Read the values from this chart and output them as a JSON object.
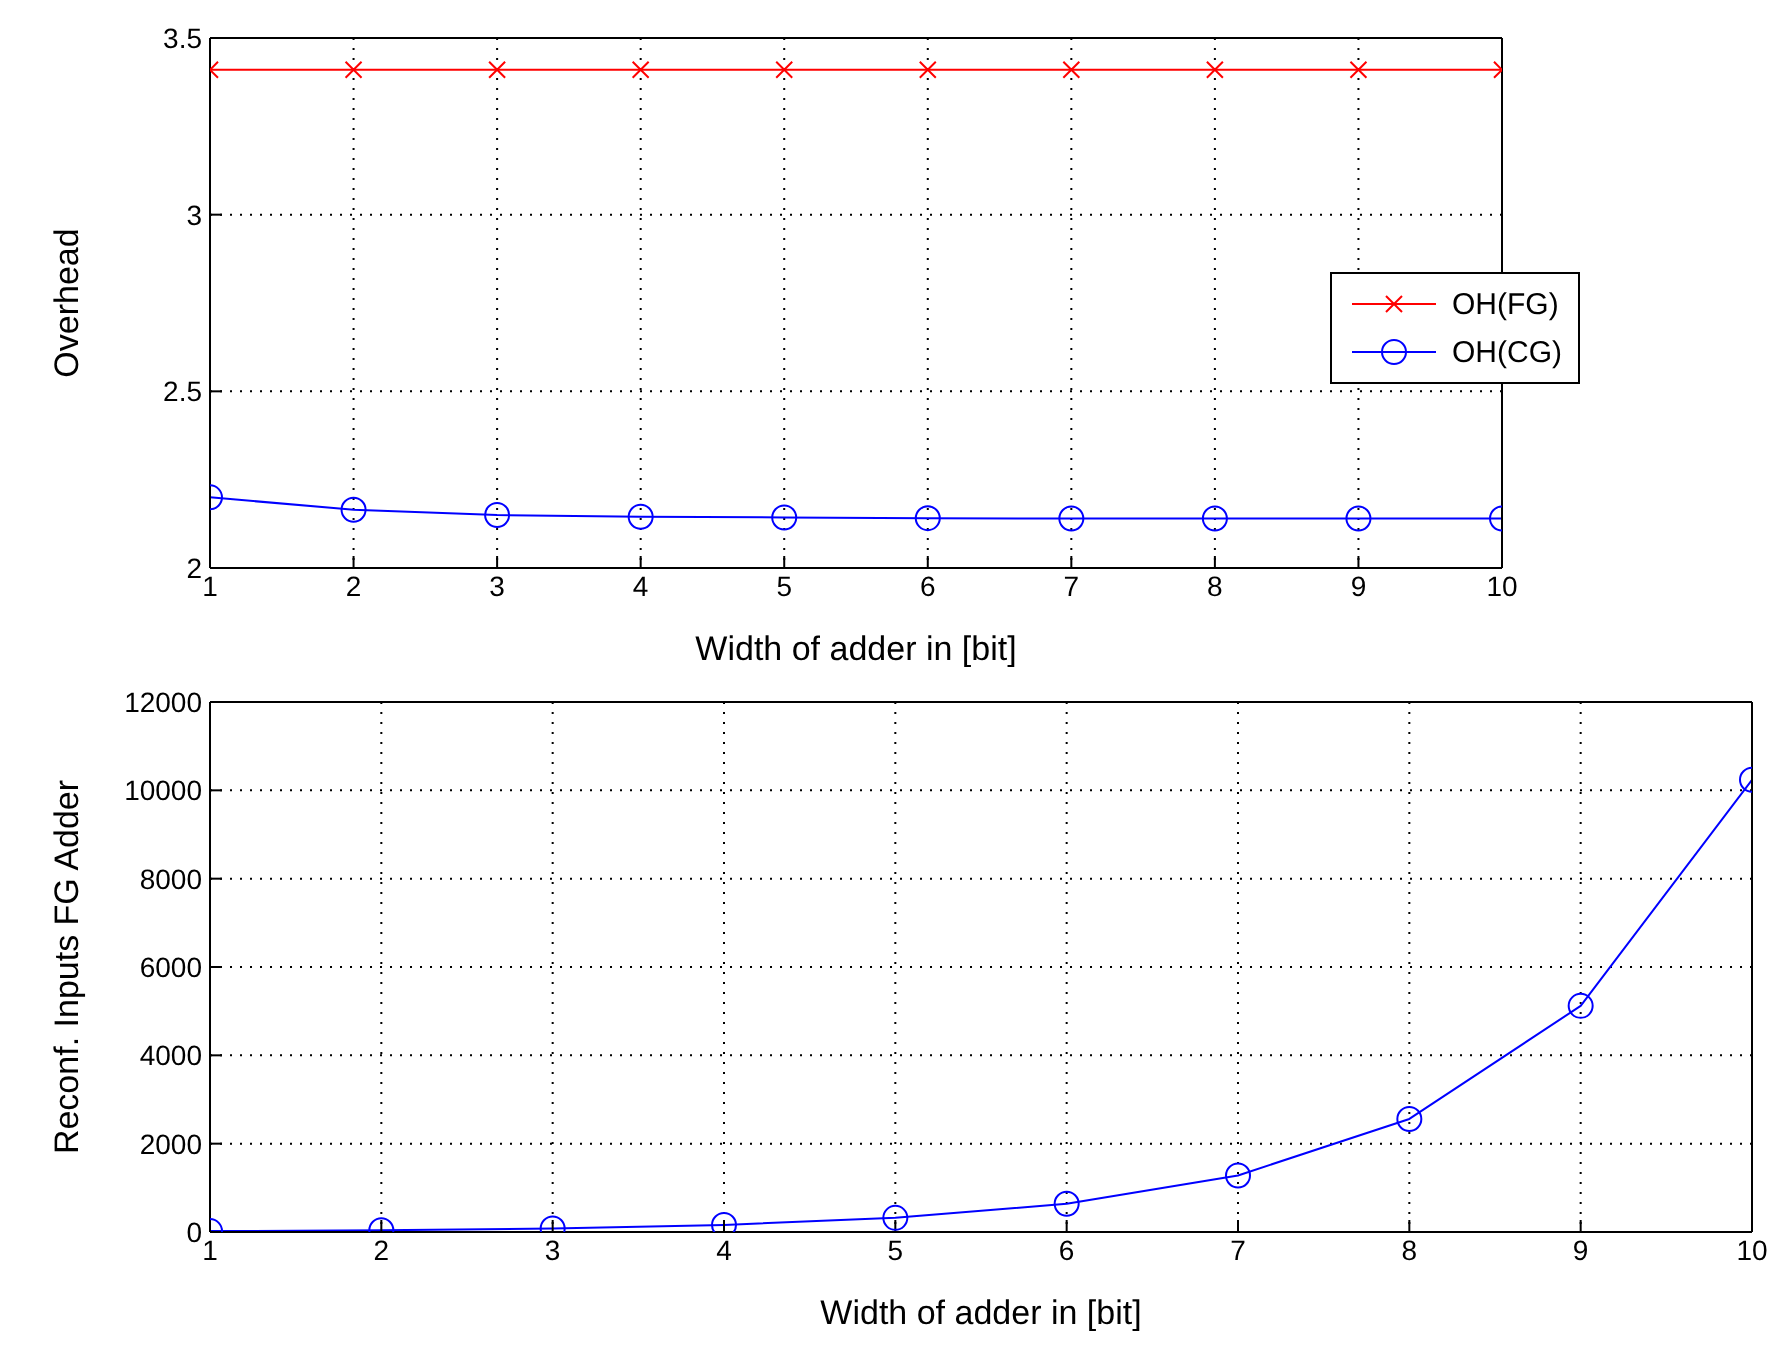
{
  "chart_data": [
    {
      "type": "line",
      "xlabel": "Width of adder in [bit]",
      "ylabel": "Overhead",
      "x": [
        1,
        2,
        3,
        4,
        5,
        6,
        7,
        8,
        9,
        10
      ],
      "xlim": [
        1,
        10
      ],
      "xticks": [
        1,
        2,
        3,
        4,
        5,
        6,
        7,
        8,
        9,
        10
      ],
      "ylim": [
        2,
        3.5
      ],
      "yticks": [
        2,
        2.5,
        3,
        3.5
      ],
      "grid": true,
      "legend": "right",
      "series": [
        {
          "name": "OH(FG)",
          "color": "#ff0000",
          "marker": "cross",
          "values": [
            3.41,
            3.41,
            3.41,
            3.41,
            3.41,
            3.41,
            3.41,
            3.41,
            3.41,
            3.41
          ]
        },
        {
          "name": "OH(CG)",
          "color": "#0000ff",
          "marker": "circle",
          "values": [
            2.2,
            2.165,
            2.15,
            2.145,
            2.143,
            2.141,
            2.14,
            2.14,
            2.14,
            2.14
          ]
        }
      ]
    },
    {
      "type": "line",
      "xlabel": "Width of adder in [bit]",
      "ylabel": "Reconf. Inputs FG Adder",
      "x": [
        1,
        2,
        3,
        4,
        5,
        6,
        7,
        8,
        9,
        10
      ],
      "xlim": [
        1,
        10
      ],
      "xticks": [
        1,
        2,
        3,
        4,
        5,
        6,
        7,
        8,
        9,
        10
      ],
      "ylim": [
        0,
        12000
      ],
      "yticks": [
        0,
        2000,
        4000,
        6000,
        8000,
        10000,
        12000
      ],
      "grid": true,
      "series": [
        {
          "color": "#0000ff",
          "marker": "circle",
          "values": [
            20,
            40,
            80,
            160,
            320,
            640,
            1280,
            2560,
            5120,
            10240
          ]
        }
      ]
    }
  ]
}
